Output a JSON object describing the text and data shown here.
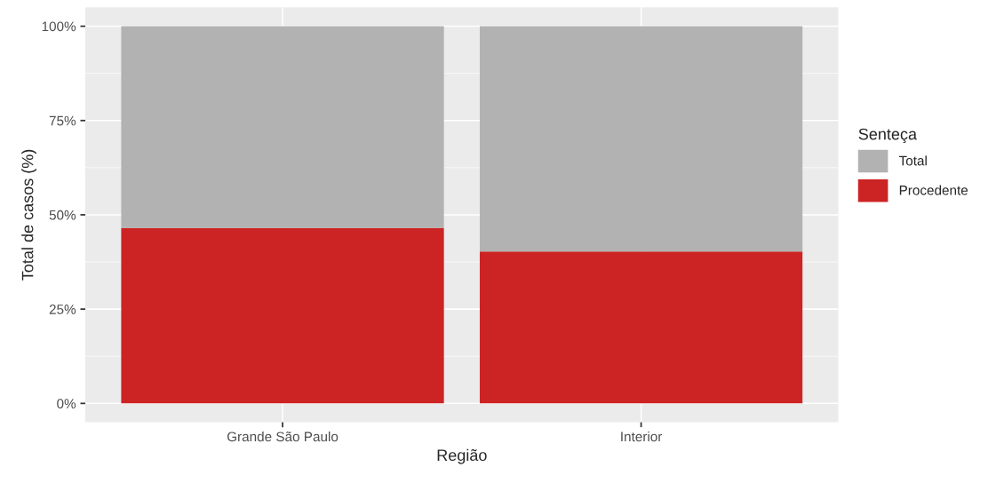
{
  "chart_data": {
    "type": "bar",
    "stacked": true,
    "xlabel": "Região",
    "ylabel": "Total de casos (%)",
    "legend_title": "Senteça",
    "categories": [
      "Grande São Paulo",
      "Interior"
    ],
    "series": [
      {
        "name": "Procedente",
        "color": "#cc2424",
        "values": [
          46.5,
          40.3
        ]
      },
      {
        "name": "Total",
        "color": "#b2b2b2",
        "values": [
          53.5,
          59.7
        ]
      }
    ],
    "ylim": [
      -5,
      105
    ],
    "yticks": [
      {
        "value": 0,
        "label": "0%"
      },
      {
        "value": 25,
        "label": "25%"
      },
      {
        "value": 50,
        "label": "50%"
      },
      {
        "value": 75,
        "label": "75%"
      },
      {
        "value": 100,
        "label": "100%"
      }
    ],
    "grid": true,
    "legend": "right"
  }
}
